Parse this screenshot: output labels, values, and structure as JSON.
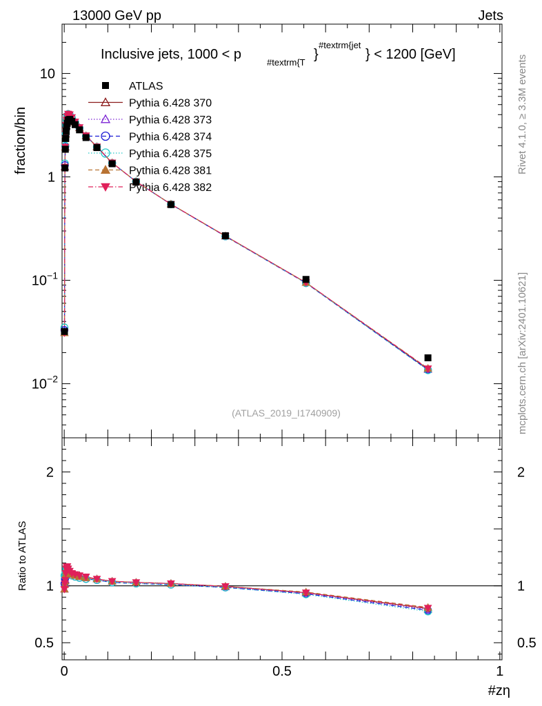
{
  "header": {
    "energy_label": "13000 GeV pp",
    "category_label": "Jets",
    "side_label_top": "Rivet 4.1.0, ≥ 3.3M events",
    "side_label_bottom": "mcplots.cern.ch [arXiv:2401.10621]",
    "analysis_id": "(ATLAS_2019_I1740909)"
  },
  "chart_data": [
    {
      "type": "line",
      "panel": "main",
      "title_parts": {
        "prefix": "Inclusive jets, 1000 < p",
        "sub": "#textrm{T",
        "sup": "#textrm{jet",
        "suffix": "} < 1200 [GeV]"
      },
      "ylabel": "fraction/bin",
      "yscale": "log",
      "ylim": [
        0.003,
        30
      ],
      "xlim": [
        -0.005,
        1.005
      ],
      "yticks": [
        {
          "value": 10,
          "base": "10",
          "exp": ""
        },
        {
          "value": 1,
          "base": "1",
          "exp": ""
        },
        {
          "value": 0.1,
          "base": "10",
          "exp": "−1"
        },
        {
          "value": 0.01,
          "base": "10",
          "exp": "−2"
        }
      ],
      "x": [
        0.0005,
        0.0015,
        0.0025,
        0.0035,
        0.0045,
        0.0055,
        0.007,
        0.009,
        0.0125,
        0.0175,
        0.025,
        0.035,
        0.05,
        0.075,
        0.11,
        0.165,
        0.245,
        0.37,
        0.555,
        0.835
      ],
      "series": [
        {
          "name": "ATLAS",
          "color": "#000000",
          "marker": "square",
          "line": "none",
          "values": [
            0.032,
            1.22,
            1.85,
            2.35,
            2.75,
            3.05,
            3.3,
            3.55,
            3.6,
            3.45,
            3.2,
            2.85,
            2.4,
            1.92,
            1.34,
            0.89,
            0.54,
            0.27,
            0.102,
            0.0178
          ]
        },
        {
          "name": "Pythia 6.428 370",
          "color": "#8b1a1a",
          "marker": "triangle-up-open",
          "line": "solid",
          "values": [
            0.031,
            1.25,
            1.95,
            2.6,
            3.15,
            3.55,
            3.85,
            4.05,
            4.0,
            3.75,
            3.4,
            3.0,
            2.5,
            1.96,
            1.37,
            0.9,
            0.545,
            0.268,
            0.095,
            0.0138
          ]
        },
        {
          "name": "Pythia 6.428 373",
          "color": "#7b22d4",
          "marker": "triangle-up-open",
          "line": "dotted",
          "values": [
            0.031,
            1.25,
            1.94,
            2.6,
            3.14,
            3.54,
            3.84,
            4.04,
            3.99,
            3.74,
            3.39,
            2.99,
            2.49,
            1.95,
            1.37,
            0.9,
            0.544,
            0.267,
            0.095,
            0.0137
          ]
        },
        {
          "name": "Pythia 6.428 374",
          "color": "#1a1ad4",
          "marker": "circle-open",
          "line": "dashed",
          "values": [
            0.033,
            1.3,
            1.98,
            2.62,
            3.16,
            3.56,
            3.86,
            4.04,
            3.98,
            3.72,
            3.37,
            2.97,
            2.48,
            1.95,
            1.36,
            0.9,
            0.543,
            0.266,
            0.094,
            0.0136
          ]
        },
        {
          "name": "Pythia 6.428 375",
          "color": "#22c8c8",
          "marker": "circle-open",
          "line": "dotted",
          "values": [
            0.035,
            1.35,
            2.0,
            2.64,
            3.17,
            3.57,
            3.87,
            4.05,
            3.98,
            3.72,
            3.37,
            2.97,
            2.48,
            1.95,
            1.36,
            0.9,
            0.543,
            0.266,
            0.094,
            0.0135
          ]
        },
        {
          "name": "Pythia 6.428 381",
          "color": "#b87333",
          "marker": "triangle-up-filled",
          "line": "dashed",
          "values": [
            0.031,
            1.24,
            1.93,
            2.58,
            3.12,
            3.52,
            3.82,
            4.02,
            3.97,
            3.73,
            3.38,
            2.98,
            2.49,
            1.95,
            1.37,
            0.9,
            0.545,
            0.268,
            0.095,
            0.0141
          ]
        },
        {
          "name": "Pythia 6.428 382",
          "color": "#e0205a",
          "marker": "triangle-down-filled",
          "line": "dashdot",
          "values": [
            0.031,
            1.25,
            1.95,
            2.61,
            3.16,
            3.56,
            3.86,
            4.06,
            4.01,
            3.76,
            3.41,
            3.01,
            2.51,
            1.96,
            1.37,
            0.9,
            0.545,
            0.268,
            0.095,
            0.014
          ]
        }
      ]
    },
    {
      "type": "line",
      "panel": "ratio",
      "ylabel": "Ratio to ATLAS",
      "xlabel": "#zη",
      "ylim": [
        0.35,
        2.3
      ],
      "xlim": [
        -0.005,
        1.005
      ],
      "yticks": [
        {
          "value": 2,
          "label": "2"
        },
        {
          "value": 1,
          "label": "1"
        },
        {
          "value": 0.5,
          "label": "0.5"
        }
      ],
      "xticks": [
        {
          "value": 0,
          "label": "0"
        },
        {
          "value": 0.5,
          "label": "0.5"
        },
        {
          "value": 1,
          "label": "1"
        }
      ],
      "x": [
        0.0005,
        0.0015,
        0.0025,
        0.0035,
        0.0045,
        0.0055,
        0.007,
        0.009,
        0.0125,
        0.0175,
        0.025,
        0.035,
        0.05,
        0.075,
        0.11,
        0.165,
        0.245,
        0.37,
        0.555,
        0.835
      ],
      "series": [
        {
          "name": "ATLAS",
          "color": "#000000",
          "band": [
            0.95,
            1.05
          ],
          "values": [
            1,
            1,
            1,
            1,
            1,
            1,
            1,
            1,
            1,
            1,
            1,
            1,
            1,
            1,
            1,
            1,
            1,
            1,
            1,
            1
          ]
        },
        {
          "name": "Pythia 6.428 370",
          "color": "#8b1a1a",
          "marker": "triangle-up-open",
          "line": "solid",
          "values": [
            0.97,
            1.02,
            1.05,
            1.1,
            1.13,
            1.14,
            1.15,
            1.14,
            1.12,
            1.11,
            1.1,
            1.09,
            1.07,
            1.06,
            1.04,
            1.03,
            1.02,
            0.995,
            0.94,
            0.8
          ]
        },
        {
          "name": "Pythia 6.428 373",
          "color": "#7b22d4",
          "marker": "triangle-up-open",
          "line": "dotted",
          "values": [
            0.97,
            1.02,
            1.05,
            1.1,
            1.13,
            1.14,
            1.15,
            1.14,
            1.12,
            1.1,
            1.09,
            1.08,
            1.07,
            1.06,
            1.04,
            1.03,
            1.02,
            0.99,
            0.935,
            0.79
          ]
        },
        {
          "name": "Pythia 6.428 374",
          "color": "#1a1ad4",
          "marker": "circle-open",
          "line": "dashed",
          "values": [
            1.02,
            1.06,
            1.07,
            1.11,
            1.14,
            1.15,
            1.15,
            1.13,
            1.11,
            1.09,
            1.08,
            1.07,
            1.06,
            1.05,
            1.03,
            1.02,
            1.01,
            0.985,
            0.93,
            0.785
          ]
        },
        {
          "name": "Pythia 6.428 375",
          "color": "#22c8c8",
          "marker": "circle-open",
          "line": "dotted",
          "values": [
            1.09,
            1.1,
            1.08,
            1.12,
            1.15,
            1.16,
            1.16,
            1.14,
            1.11,
            1.09,
            1.08,
            1.07,
            1.06,
            1.05,
            1.03,
            1.02,
            1.01,
            0.985,
            0.925,
            0.775
          ]
        },
        {
          "name": "Pythia 6.428 381",
          "color": "#b87333",
          "marker": "triangle-up-filled",
          "line": "dashed",
          "values": [
            0.97,
            1.01,
            1.04,
            1.1,
            1.13,
            1.15,
            1.16,
            1.15,
            1.12,
            1.1,
            1.09,
            1.08,
            1.07,
            1.06,
            1.04,
            1.03,
            1.02,
            0.995,
            0.945,
            0.81
          ]
        },
        {
          "name": "Pythia 6.428 382",
          "color": "#e0205a",
          "marker": "triangle-down-filled",
          "line": "dashdot",
          "values": [
            0.97,
            1.02,
            1.05,
            1.11,
            1.15,
            1.17,
            1.17,
            1.15,
            1.13,
            1.11,
            1.1,
            1.09,
            1.08,
            1.06,
            1.04,
            1.03,
            1.02,
            0.995,
            0.94,
            0.805
          ]
        }
      ]
    }
  ]
}
